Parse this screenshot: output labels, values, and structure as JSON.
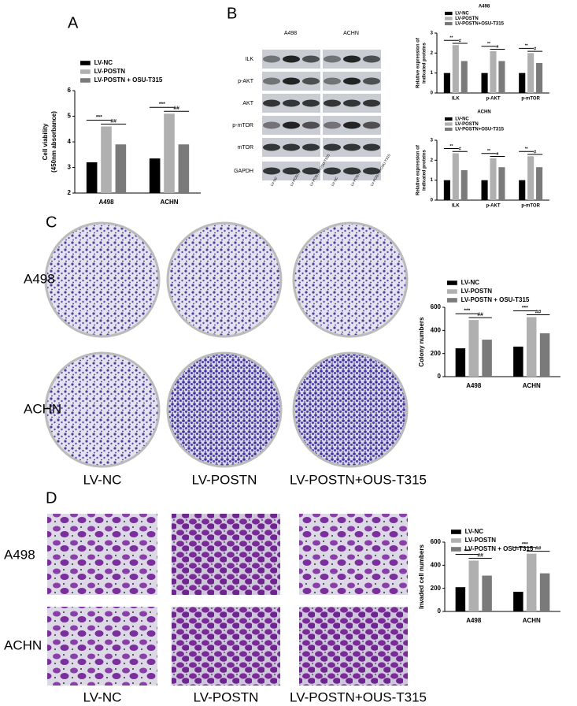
{
  "figure": {
    "panel_letters": [
      "A",
      "B",
      "C",
      "D"
    ],
    "blot": {
      "cell_lines": [
        "A498",
        "ACHN"
      ],
      "proteins": [
        "ILK",
        "p-AKT",
        "AKT",
        "p-mTOR",
        "mTOR",
        "GAPDH"
      ],
      "lanes": [
        "LV-NC",
        "LV-POSTN",
        "LV-POSTN+OSU-T315"
      ]
    },
    "colony": {
      "rows": [
        "A498",
        "ACHN"
      ],
      "columns": [
        "LV-NC",
        "LV-POSTN",
        "LV-POSTN+OUS-T315"
      ]
    },
    "invasion": {
      "rows": [
        "A498",
        "ACHN"
      ],
      "columns": [
        "LV-NC",
        "LV-POSTN",
        "LV-POSTN+OUS-T315"
      ]
    }
  },
  "chart_data": [
    {
      "type": "bar",
      "y_label": [
        "Cell viability",
        "(450nm absorbance)"
      ],
      "categories": [
        "A498",
        "ACHN"
      ],
      "series": [
        {
          "name": "LV-NC",
          "color": "#000000",
          "values": [
            3.2,
            3.35
          ]
        },
        {
          "name": "LV-POSTN",
          "color": "#b0b0b0",
          "values": [
            4.6,
            5.1
          ]
        },
        {
          "name": "LV-POSTN + OSU-T315",
          "color": "#7a7a7a",
          "values": [
            3.9,
            3.9
          ]
        }
      ],
      "ylim": [
        2,
        6
      ],
      "yticks": [
        2,
        3,
        4,
        5,
        6
      ],
      "annotations": [
        "***",
        "##",
        "***",
        "##"
      ]
    },
    {
      "type": "bar",
      "title": "A498",
      "y_label": [
        "Relative expression of",
        "indicated proteins"
      ],
      "categories": [
        "ILK",
        "p-AKT",
        "p-mTOR"
      ],
      "series": [
        {
          "name": "LV-NC",
          "color": "#000000",
          "values": [
            1.0,
            1.0,
            1.0
          ]
        },
        {
          "name": "LV-POSTN",
          "color": "#b0b0b0",
          "values": [
            2.4,
            2.1,
            2.0
          ]
        },
        {
          "name": "LV-POSTN+OSU-T315",
          "color": "#7a7a7a",
          "values": [
            1.6,
            1.6,
            1.5
          ]
        }
      ],
      "ylim": [
        0,
        3
      ],
      "yticks": [
        0,
        1,
        2,
        3
      ],
      "annotations": [
        "**",
        "#",
        "**",
        "#",
        "**",
        "#"
      ]
    },
    {
      "type": "bar",
      "title": "ACHN",
      "y_label": [
        "Relative expression of",
        "indicated proteins"
      ],
      "categories": [
        "ILK",
        "p-AKT",
        "p-mTOR"
      ],
      "series": [
        {
          "name": "LV-NC",
          "color": "#000000",
          "values": [
            1.0,
            1.0,
            1.0
          ]
        },
        {
          "name": "LV-POSTN",
          "color": "#b0b0b0",
          "values": [
            2.35,
            2.1,
            2.2
          ]
        },
        {
          "name": "LV-POSTN+OSU-T315",
          "color": "#7a7a7a",
          "values": [
            1.5,
            1.65,
            1.65
          ]
        }
      ],
      "ylim": [
        0,
        3
      ],
      "yticks": [
        0,
        1,
        2,
        3
      ],
      "annotations": [
        "**",
        "#",
        "**",
        "#",
        "**",
        "#"
      ]
    },
    {
      "type": "bar",
      "y_label": [
        "Colony numbers"
      ],
      "categories": [
        "A498",
        "ACHN"
      ],
      "series": [
        {
          "name": "LV-NC",
          "color": "#000000",
          "values": [
            245,
            260
          ]
        },
        {
          "name": "LV-POSTN",
          "color": "#b0b0b0",
          "values": [
            490,
            515
          ]
        },
        {
          "name": "LV-POSTN + OSU-T315",
          "color": "#7a7a7a",
          "values": [
            320,
            375
          ]
        }
      ],
      "ylim": [
        0,
        600
      ],
      "yticks": [
        0,
        200,
        400,
        600
      ],
      "annotations": [
        "***",
        "##",
        "***",
        "##"
      ]
    },
    {
      "type": "bar",
      "y_label": [
        "Invaded cell numbers"
      ],
      "categories": [
        "A498",
        "ACHN"
      ],
      "series": [
        {
          "name": "LV-NC",
          "color": "#000000",
          "values": [
            210,
            170
          ]
        },
        {
          "name": "LV-POSTN",
          "color": "#b0b0b0",
          "values": [
            440,
            500
          ]
        },
        {
          "name": "LV-POSTN + OSU-T315",
          "color": "#7a7a7a",
          "values": [
            310,
            330
          ]
        }
      ],
      "ylim": [
        0,
        600
      ],
      "yticks": [
        0,
        200,
        400,
        600
      ],
      "annotations": [
        "***",
        "##",
        "***",
        "##"
      ]
    }
  ]
}
